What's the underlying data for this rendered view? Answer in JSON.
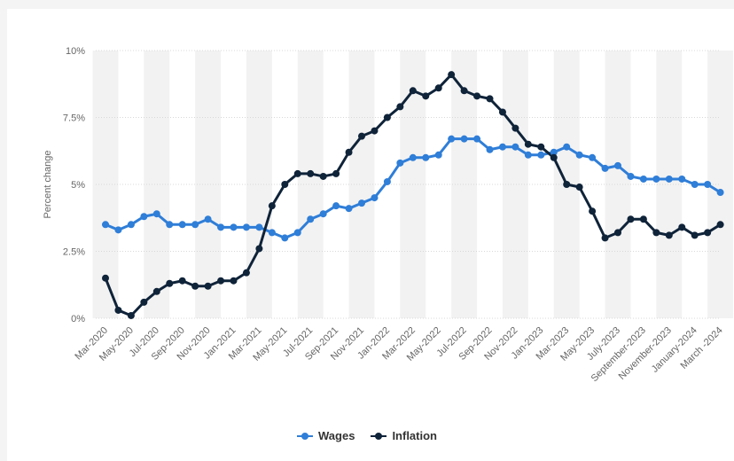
{
  "chart_data": {
    "type": "line",
    "ylabel": "Percent change",
    "ylim": [
      0,
      10
    ],
    "y_ticks": [
      0,
      2.5,
      5,
      7.5,
      10
    ],
    "y_tick_labels": [
      "0%",
      "2.5%",
      "5%",
      "7.5%",
      "10%"
    ],
    "grid": true,
    "legend_position": "bottom",
    "x_tick_labels": [
      "Mar-2020",
      "May-2020",
      "Jul-2020",
      "Sep-2020",
      "Nov-2020",
      "Jan-2021",
      "Mar-2021",
      "May-2021",
      "Jul-2021",
      "Sep-2021",
      "Nov-2021",
      "Jan-2022",
      "Mar-2022",
      "May-2022",
      "Jul-2022",
      "Sep-2022",
      "Nov-2022",
      "Jan-2023",
      "Mar-2023",
      "May-2023",
      "July-2023",
      "September-2023",
      "November-2023",
      "January-2024",
      "March -2024"
    ],
    "series": [
      {
        "name": "Wages",
        "color": "#2f7ed8",
        "values": [
          3.5,
          3.3,
          3.5,
          3.8,
          3.9,
          3.5,
          3.5,
          3.5,
          3.7,
          3.4,
          3.4,
          3.4,
          3.4,
          3.2,
          3.0,
          3.2,
          3.7,
          3.9,
          4.2,
          4.1,
          4.3,
          4.5,
          5.1,
          5.8,
          6.0,
          6.0,
          6.1,
          6.7,
          6.7,
          6.7,
          6.3,
          6.4,
          6.4,
          6.1,
          6.1,
          6.2,
          6.4,
          6.1,
          6.0,
          5.6,
          5.7,
          5.3,
          5.2,
          5.2,
          5.2,
          5.2,
          5.0,
          5.0,
          4.7
        ]
      },
      {
        "name": "Inflation",
        "color": "#0f2339",
        "values": [
          1.5,
          0.3,
          0.1,
          0.6,
          1.0,
          1.3,
          1.4,
          1.2,
          1.2,
          1.4,
          1.4,
          1.7,
          2.6,
          4.2,
          5.0,
          5.4,
          5.4,
          5.3,
          5.4,
          6.2,
          6.8,
          7.0,
          7.5,
          7.9,
          8.5,
          8.3,
          8.6,
          9.1,
          8.5,
          8.3,
          8.2,
          7.7,
          7.1,
          6.5,
          6.4,
          6.0,
          5.0,
          4.9,
          4.0,
          3.0,
          3.2,
          3.7,
          3.7,
          3.2,
          3.1,
          3.4,
          3.1,
          3.2,
          3.5
        ]
      }
    ]
  }
}
